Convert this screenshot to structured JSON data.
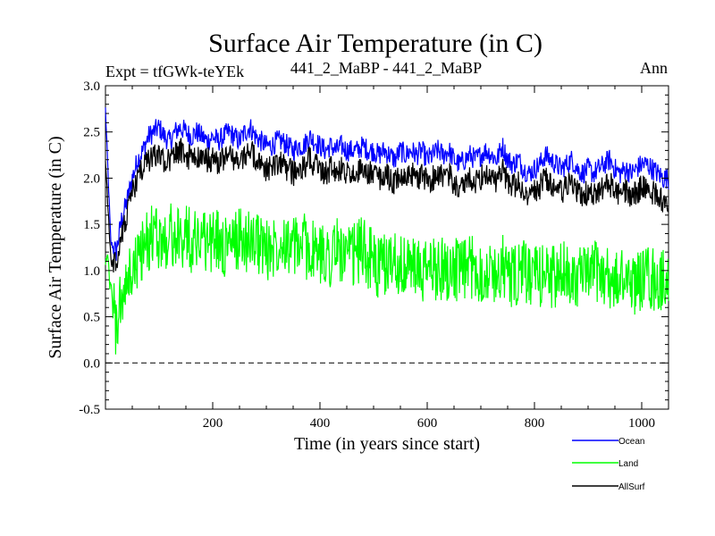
{
  "chart_data": {
    "type": "line",
    "title": "Surface Air Temperature (in C)",
    "subtitle_left": "Expt = tfGWk-teYEk",
    "subtitle_center": "441_2_MaBP - 441_2_MaBP",
    "subtitle_right": "Ann",
    "xlabel": "Time (in years since start)",
    "ylabel": "Surface Air Temperature (in C)",
    "xlim": [
      0,
      1050
    ],
    "ylim": [
      -0.5,
      3.0
    ],
    "x_ticks": [
      200,
      400,
      600,
      800,
      1000
    ],
    "x_tick_labels": [
      "200",
      "400",
      "600",
      "800",
      "1000"
    ],
    "y_ticks": [
      -0.5,
      0.0,
      0.5,
      1.0,
      1.5,
      2.0,
      2.5,
      3.0
    ],
    "y_tick_labels": [
      "-0.5",
      "0.0",
      "0.5",
      "1.0",
      "1.5",
      "2.0",
      "2.5",
      "3.0"
    ],
    "zero_line": 0.0,
    "legend_position": "bottom-right",
    "x_step": 10,
    "series": [
      {
        "name": "Ocean",
        "color": "#0000ff",
        "values": [
          2.75,
          1.3,
          1.2,
          1.55,
          1.75,
          2.0,
          2.2,
          2.3,
          2.45,
          2.5,
          2.55,
          2.45,
          2.4,
          2.5,
          2.55,
          2.5,
          2.45,
          2.5,
          2.45,
          2.4,
          2.45,
          2.4,
          2.45,
          2.5,
          2.45,
          2.4,
          2.5,
          2.55,
          2.45,
          2.4,
          2.35,
          2.35,
          2.4,
          2.4,
          2.35,
          2.3,
          2.35,
          2.35,
          2.45,
          2.4,
          2.35,
          2.3,
          2.35,
          2.3,
          2.35,
          2.3,
          2.3,
          2.3,
          2.35,
          2.3,
          2.3,
          2.25,
          2.3,
          2.25,
          2.2,
          2.3,
          2.25,
          2.3,
          2.25,
          2.3,
          2.2,
          2.25,
          2.3,
          2.25,
          2.3,
          2.2,
          2.15,
          2.2,
          2.25,
          2.2,
          2.25,
          2.3,
          2.25,
          2.2,
          2.35,
          2.2,
          2.15,
          2.2,
          2.1,
          2.05,
          2.1,
          2.15,
          2.25,
          2.2,
          2.15,
          2.1,
          2.15,
          2.2,
          2.1,
          2.05,
          2.1,
          2.05,
          2.1,
          2.15,
          2.2,
          2.1,
          2.05,
          2.1,
          2.05,
          2.1,
          2.15,
          2.15,
          2.1,
          2.05,
          2.0
        ]
      },
      {
        "name": "Land",
        "color": "#00ff00",
        "values": [
          1.2,
          0.8,
          0.35,
          0.7,
          0.8,
          1.0,
          1.1,
          1.25,
          1.3,
          1.4,
          1.35,
          1.3,
          1.4,
          1.35,
          1.3,
          1.45,
          1.3,
          1.35,
          1.4,
          1.3,
          1.3,
          1.35,
          1.25,
          1.3,
          1.25,
          1.4,
          1.3,
          1.35,
          1.3,
          1.3,
          1.2,
          1.25,
          1.3,
          1.4,
          1.3,
          1.25,
          1.25,
          1.3,
          1.2,
          1.2,
          1.15,
          1.2,
          1.15,
          1.25,
          1.2,
          1.1,
          1.15,
          1.2,
          1.25,
          1.15,
          1.1,
          1.0,
          1.05,
          1.1,
          1.15,
          1.05,
          1.0,
          1.1,
          1.0,
          0.95,
          1.0,
          1.05,
          1.0,
          1.05,
          1.0,
          1.05,
          0.95,
          1.0,
          1.05,
          1.0,
          1.0,
          0.95,
          1.0,
          0.95,
          1.05,
          1.0,
          0.9,
          0.95,
          1.0,
          0.95,
          0.9,
          0.95,
          1.0,
          0.95,
          0.9,
          0.95,
          1.0,
          0.95,
          0.95,
          0.9,
          0.95,
          1.0,
          1.0,
          0.95,
          0.9,
          0.85,
          0.9,
          0.95,
          0.9,
          0.85,
          0.9,
          0.95,
          0.9,
          0.85,
          0.9
        ]
      },
      {
        "name": "AllSurf",
        "color": "#000000",
        "values": [
          2.2,
          1.1,
          1.05,
          1.4,
          1.6,
          1.85,
          2.0,
          2.1,
          2.2,
          2.25,
          2.25,
          2.2,
          2.2,
          2.25,
          2.3,
          2.25,
          2.2,
          2.25,
          2.2,
          2.2,
          2.2,
          2.15,
          2.2,
          2.25,
          2.2,
          2.15,
          2.25,
          2.3,
          2.2,
          2.15,
          2.1,
          2.1,
          2.15,
          2.15,
          2.1,
          2.05,
          2.1,
          2.1,
          2.2,
          2.15,
          2.1,
          2.05,
          2.1,
          2.05,
          2.1,
          2.05,
          2.05,
          2.05,
          2.1,
          2.05,
          2.05,
          2.0,
          2.05,
          2.0,
          1.95,
          2.05,
          2.0,
          2.05,
          2.0,
          2.05,
          1.95,
          2.0,
          2.05,
          2.0,
          2.05,
          1.95,
          1.9,
          1.95,
          2.0,
          1.95,
          2.0,
          2.05,
          2.0,
          1.95,
          2.1,
          1.95,
          1.9,
          1.95,
          1.85,
          1.8,
          1.85,
          1.9,
          2.0,
          1.95,
          1.9,
          1.85,
          1.9,
          1.95,
          1.85,
          1.8,
          1.85,
          1.8,
          1.85,
          1.9,
          1.95,
          1.85,
          1.8,
          1.85,
          1.8,
          1.85,
          1.9,
          1.9,
          1.85,
          1.8,
          1.75
        ]
      }
    ]
  }
}
